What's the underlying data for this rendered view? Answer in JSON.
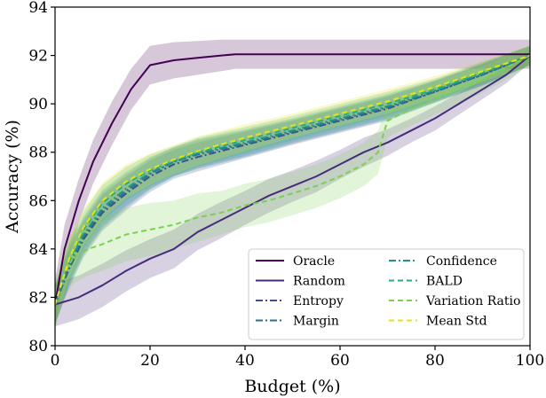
{
  "chart_data": {
    "type": "line",
    "title": "",
    "xlabel": "Budget (%)",
    "ylabel": "Accuracy (%)",
    "xlim": [
      0,
      100
    ],
    "ylim": [
      80,
      94
    ],
    "xticks": [
      0,
      20,
      40,
      60,
      80,
      100
    ],
    "yticks": [
      80,
      82,
      84,
      86,
      88,
      90,
      92,
      94
    ],
    "grid": false,
    "legend_position": "bottom-right",
    "series": [
      {
        "name": "Oracle",
        "color": "#440154",
        "dash": "solid",
        "x": [
          0,
          2,
          5,
          8,
          12,
          16,
          20,
          25,
          30,
          35,
          38,
          45,
          60,
          80,
          100
        ],
        "y": [
          81.7,
          84.0,
          86.0,
          87.6,
          89.2,
          90.6,
          91.6,
          91.8,
          91.9,
          92.0,
          92.05,
          92.05,
          92.05,
          92.05,
          92.05
        ],
        "band": [
          1.0,
          1.0,
          0.9,
          0.9,
          0.9,
          0.85,
          0.8,
          0.75,
          0.7,
          0.65,
          0.6,
          0.6,
          0.6,
          0.6,
          0.6
        ]
      },
      {
        "name": "Random",
        "color": "#472c7a",
        "dash": "solid",
        "x": [
          0,
          5,
          10,
          15,
          20,
          25,
          30,
          35,
          40,
          45,
          50,
          55,
          60,
          65,
          70,
          75,
          80,
          85,
          90,
          95,
          100
        ],
        "y": [
          81.7,
          82.0,
          82.5,
          83.1,
          83.6,
          84.0,
          84.7,
          85.2,
          85.7,
          86.2,
          86.6,
          87.0,
          87.5,
          88.0,
          88.4,
          88.9,
          89.4,
          90.0,
          90.6,
          91.2,
          92.0
        ],
        "band": [
          0.9,
          0.9,
          0.9,
          0.85,
          0.8,
          0.8,
          0.75,
          0.75,
          0.7,
          0.7,
          0.65,
          0.65,
          0.6,
          0.6,
          0.55,
          0.5,
          0.5,
          0.45,
          0.4,
          0.35,
          0.3
        ]
      },
      {
        "name": "Entropy",
        "color": "#3b518b",
        "dash": "dashdot",
        "x": [
          0,
          3,
          6,
          10,
          15,
          20,
          25,
          30,
          40,
          50,
          60,
          70,
          80,
          90,
          100
        ],
        "y": [
          81.7,
          83.2,
          84.4,
          85.5,
          86.3,
          87.0,
          87.5,
          87.8,
          88.3,
          88.8,
          89.3,
          89.8,
          90.5,
          91.2,
          92.0
        ],
        "band": [
          0.8,
          0.8,
          0.75,
          0.75,
          0.7,
          0.65,
          0.6,
          0.6,
          0.55,
          0.5,
          0.5,
          0.5,
          0.45,
          0.45,
          0.4
        ]
      },
      {
        "name": "Margin",
        "color": "#2c728e",
        "dash": "dashdot",
        "x": [
          0,
          3,
          6,
          10,
          15,
          20,
          25,
          30,
          40,
          50,
          60,
          70,
          80,
          90,
          100
        ],
        "y": [
          81.7,
          83.3,
          84.5,
          85.6,
          86.4,
          87.1,
          87.6,
          87.9,
          88.35,
          88.85,
          89.35,
          89.85,
          90.5,
          91.2,
          92.0
        ],
        "band": [
          0.8,
          0.8,
          0.75,
          0.75,
          0.7,
          0.65,
          0.6,
          0.6,
          0.55,
          0.5,
          0.5,
          0.5,
          0.45,
          0.45,
          0.4
        ]
      },
      {
        "name": "Confidence",
        "color": "#21918c",
        "dash": "dashdot",
        "x": [
          0,
          3,
          6,
          10,
          15,
          20,
          25,
          30,
          40,
          50,
          60,
          70,
          80,
          90,
          100
        ],
        "y": [
          81.7,
          83.4,
          84.6,
          85.7,
          86.5,
          87.15,
          87.6,
          87.95,
          88.4,
          88.9,
          89.4,
          89.9,
          90.55,
          91.25,
          92.0
        ],
        "band": [
          0.8,
          0.8,
          0.75,
          0.75,
          0.7,
          0.65,
          0.6,
          0.6,
          0.55,
          0.5,
          0.5,
          0.5,
          0.45,
          0.45,
          0.4
        ]
      },
      {
        "name": "BALD",
        "color": "#28ae80",
        "dash": "dashed",
        "x": [
          0,
          3,
          6,
          10,
          15,
          20,
          25,
          30,
          40,
          50,
          60,
          70,
          80,
          90,
          100
        ],
        "y": [
          81.7,
          83.5,
          84.8,
          85.9,
          86.7,
          87.25,
          87.65,
          88.0,
          88.5,
          89.0,
          89.5,
          90.0,
          90.6,
          91.3,
          92.0
        ],
        "band": [
          0.8,
          0.8,
          0.75,
          0.75,
          0.7,
          0.65,
          0.6,
          0.6,
          0.55,
          0.5,
          0.5,
          0.5,
          0.45,
          0.45,
          0.4
        ]
      },
      {
        "name": "Variation Ratio",
        "color": "#7ad151",
        "dash": "dashed",
        "x": [
          0,
          2,
          4,
          7,
          10,
          15,
          20,
          25,
          30,
          35,
          40,
          45,
          50,
          55,
          60,
          65,
          68,
          70,
          75,
          80,
          85,
          90,
          95,
          100
        ],
        "y": [
          81.7,
          83.0,
          83.7,
          84.0,
          84.2,
          84.6,
          84.8,
          85.0,
          85.3,
          85.5,
          85.8,
          86.0,
          86.3,
          86.6,
          87.0,
          87.5,
          88.0,
          89.3,
          89.8,
          90.2,
          90.6,
          91.0,
          91.5,
          92.0
        ],
        "band": [
          1.0,
          1.0,
          1.1,
          1.1,
          1.1,
          1.1,
          1.1,
          1.0,
          1.0,
          0.9,
          0.9,
          0.9,
          0.9,
          0.9,
          0.9,
          0.9,
          0.9,
          0.7,
          0.7,
          0.65,
          0.6,
          0.55,
          0.5,
          0.4
        ]
      },
      {
        "name": "Mean Std",
        "color": "#e3e418",
        "dash": "dashed",
        "x": [
          0,
          3,
          6,
          10,
          15,
          20,
          25,
          30,
          40,
          50,
          60,
          70,
          80,
          90,
          100
        ],
        "y": [
          81.7,
          83.6,
          84.9,
          86.0,
          86.8,
          87.3,
          87.7,
          88.05,
          88.6,
          89.1,
          89.6,
          90.1,
          90.7,
          91.35,
          92.0
        ],
        "band": [
          0.8,
          0.8,
          0.75,
          0.75,
          0.7,
          0.65,
          0.6,
          0.6,
          0.55,
          0.5,
          0.5,
          0.5,
          0.45,
          0.45,
          0.4
        ]
      }
    ]
  }
}
